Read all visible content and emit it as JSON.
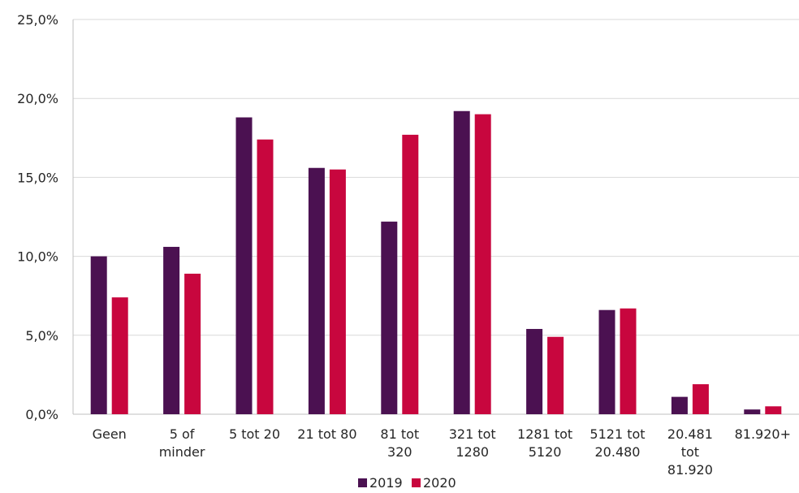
{
  "chart_data": {
    "type": "bar",
    "categories": [
      [
        "Geen"
      ],
      [
        "5 of",
        "minder"
      ],
      [
        "5 tot 20"
      ],
      [
        "21 tot 80"
      ],
      [
        "81 tot",
        "320"
      ],
      [
        "321 tot",
        "1280"
      ],
      [
        "1281 tot",
        "5120"
      ],
      [
        "5121 tot",
        "20.480"
      ],
      [
        "20.481",
        "tot",
        "81.920"
      ],
      [
        "81.920+"
      ]
    ],
    "series": [
      {
        "name": "2019",
        "color": "#4b1151",
        "values": [
          10.0,
          10.6,
          18.8,
          15.6,
          12.2,
          19.2,
          5.4,
          6.6,
          1.1,
          0.3
        ]
      },
      {
        "name": "2020",
        "color": "#c8063e",
        "values": [
          7.4,
          8.9,
          17.4,
          15.5,
          17.7,
          19.0,
          4.9,
          6.7,
          1.9,
          0.5
        ]
      }
    ],
    "yticks": [
      "0,0%",
      "5,0%",
      "10,0%",
      "15,0%",
      "20,0%",
      "25,0%"
    ],
    "ylim": [
      0,
      25
    ],
    "grid": true,
    "legend_position": "bottom"
  }
}
